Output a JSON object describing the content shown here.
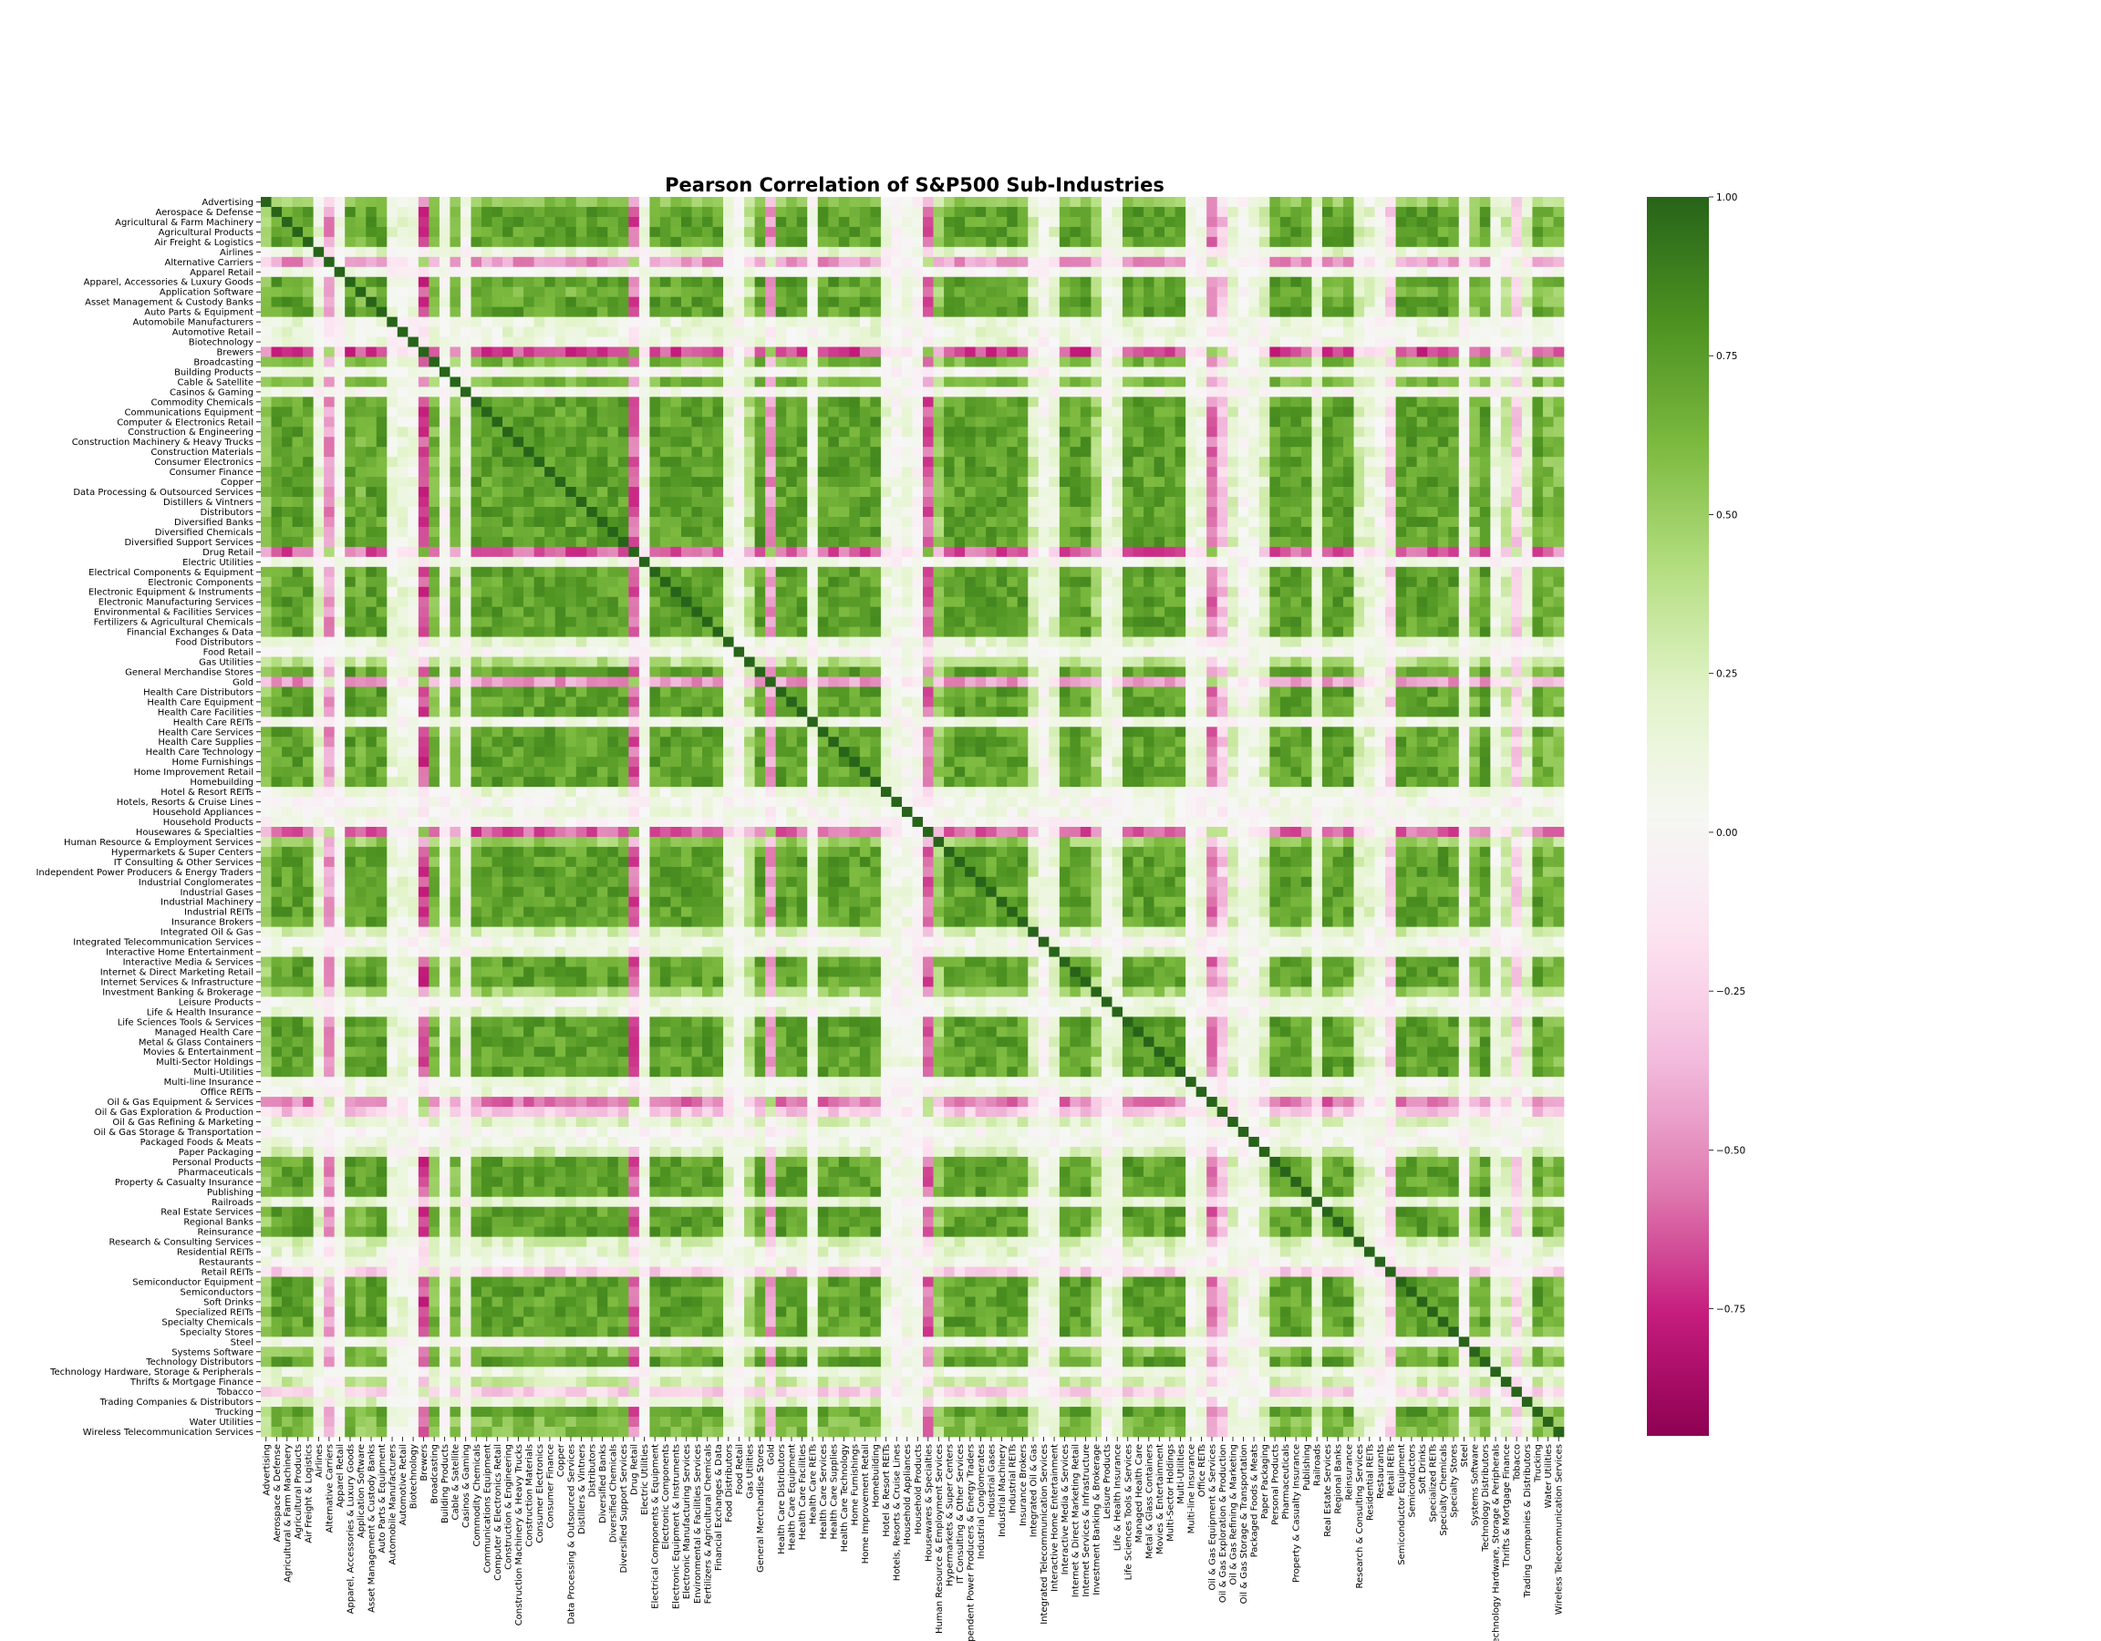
{
  "chart_data": {
    "type": "heatmap",
    "title": "Pearson Correlation of S&P500 Sub-Industries",
    "xlabel": "",
    "ylabel": "",
    "labels": [
      "Advertising",
      "Aerospace & Defense",
      "Agricultural & Farm Machinery",
      "Agricultural Products",
      "Air Freight & Logistics",
      "Airlines",
      "Alternative Carriers",
      "Apparel Retail",
      "Apparel, Accessories & Luxury Goods",
      "Application Software",
      "Asset Management & Custody Banks",
      "Auto Parts & Equipment",
      "Automobile Manufacturers",
      "Automotive Retail",
      "Biotechnology",
      "Brewers",
      "Broadcasting",
      "Building Products",
      "Cable & Satellite",
      "Casinos & Gaming",
      "Commodity Chemicals",
      "Communications Equipment",
      "Computer & Electronics Retail",
      "Construction & Engineering",
      "Construction Machinery & Heavy Trucks",
      "Construction Materials",
      "Consumer Electronics",
      "Consumer Finance",
      "Copper",
      "Data Processing & Outsourced Services",
      "Distillers & Vintners",
      "Distributors",
      "Diversified Banks",
      "Diversified Chemicals",
      "Diversified Support Services",
      "Drug Retail",
      "Electric Utilities",
      "Electrical Components & Equipment",
      "Electronic Components",
      "Electronic Equipment & Instruments",
      "Electronic Manufacturing Services",
      "Environmental & Facilities Services",
      "Fertilizers & Agricultural Chemicals",
      "Financial Exchanges & Data",
      "Food Distributors",
      "Food Retail",
      "Gas Utilities",
      "General Merchandise Stores",
      "Gold",
      "Health Care Distributors",
      "Health Care Equipment",
      "Health Care Facilities",
      "Health Care REITs",
      "Health Care Services",
      "Health Care Supplies",
      "Health Care Technology",
      "Home Furnishings",
      "Home Improvement Retail",
      "Homebuilding",
      "Hotel & Resort REITs",
      "Hotels, Resorts & Cruise Lines",
      "Household Appliances",
      "Household Products",
      "Housewares & Specialties",
      "Human Resource & Employment Services",
      "Hypermarkets & Super Centers",
      "IT Consulting & Other Services",
      "Independent Power Producers & Energy Traders",
      "Industrial Conglomerates",
      "Industrial Gases",
      "Industrial Machinery",
      "Industrial REITs",
      "Insurance Brokers",
      "Integrated Oil & Gas",
      "Integrated Telecommunication Services",
      "Interactive Home Entertainment",
      "Interactive Media & Services",
      "Internet & Direct Marketing Retail",
      "Internet Services & Infrastructure",
      "Investment Banking & Brokerage",
      "Leisure Products",
      "Life & Health Insurance",
      "Life Sciences Tools & Services",
      "Managed Health Care",
      "Metal & Glass Containers",
      "Movies & Entertainment",
      "Multi-Sector Holdings",
      "Multi-Utilities",
      "Multi-line Insurance",
      "Office REITs",
      "Oil & Gas Equipment & Services",
      "Oil & Gas Exploration & Production",
      "Oil & Gas Refining & Marketing",
      "Oil & Gas Storage & Transportation",
      "Packaged Foods & Meats",
      "Paper Packaging",
      "Personal Products",
      "Pharmaceuticals",
      "Property & Casualty Insurance",
      "Publishing",
      "Railroads",
      "Real Estate Services",
      "Regional Banks",
      "Reinsurance",
      "Research & Consulting Services",
      "Residential REITs",
      "Restaurants",
      "Retail REITs",
      "Semiconductor Equipment",
      "Semiconductors",
      "Soft Drinks",
      "Specialized REITs",
      "Specialty Chemicals",
      "Specialty Stores",
      "Steel",
      "Systems Software",
      "Technology Distributors",
      "Technology Hardware, Storage & Peripherals",
      "Thrifts & Mortgage Finance",
      "Tobacco",
      "Trading Companies & Distributors",
      "Trucking",
      "Water Utilities",
      "Wireless Telecommunication Services"
    ],
    "vmin": -0.95,
    "vmax": 1.0,
    "colormap": "PiYG",
    "colorbar_ticks": [
      1.0,
      0.75,
      0.5,
      0.25,
      0.0,
      -0.25,
      -0.5,
      -0.75
    ],
    "colorbar_tick_labels": [
      "1.00",
      "0.75",
      "0.50",
      "0.25",
      "0.00",
      "−0.25",
      "−0.50",
      "−0.75"
    ],
    "profile": {
      "Advertising": 0.62,
      "Airlines": 0.2,
      "Alternative Carriers": -0.55,
      "Apparel Retail": 0.08,
      "Application Software": 0.75,
      "Automobile Manufacturers": 0.15,
      "Automotive Retail": 0.15,
      "Biotechnology": 0.12,
      "Brewers": -0.78,
      "Broadcasting": 0.72,
      "Building Products": 0.05,
      "Cable & Satellite": 0.72,
      "Casinos & Gaming": 0.05,
      "Drug Retail": -0.72,
      "Electric Utilities": 0.1,
      "Food Distributors": 0.2,
      "Food Retail": 0.05,
      "Gas Utilities": 0.45,
      "Gold": -0.55,
      "Health Care REITs": 0.1,
      "Hotel & Resort REITs": 0.15,
      "Hotels, Resorts & Cruise Lines": 0.05,
      "Household Appliances": 0.1,
      "Household Products": 0.02,
      "Housewares & Specialties": -0.72,
      "Human Resource & Employment Services": 0.6,
      "Integrated Oil & Gas": 0.3,
      "Integrated Telecommunication Services": 0.05,
      "Interactive Home Entertainment": 0.2,
      "Investment Banking & Brokerage": 0.55,
      "Leisure Products": 0.1,
      "Life & Health Insurance": 0.2,
      "Multi-line Insurance": 0.1,
      "Office REITs": 0.15,
      "Oil & Gas Equipment & Services": -0.65,
      "Oil & Gas Exploration & Production": -0.35,
      "Oil & Gas Refining & Marketing": 0.25,
      "Oil & Gas Storage & Transportation": 0.05,
      "Packaged Foods & Meats": 0.1,
      "Paper Packaging": 0.3,
      "Railroads": 0.2,
      "Research & Consulting Services": 0.3,
      "Residential REITs": 0.2,
      "Restaurants": 0.1,
      "Retail REITs": -0.3,
      "Steel": 0.05,
      "Systems Software": 0.7,
      "Technology Hardware, Storage & Peripherals": 0.15,
      "Thrifts & Mortgage Finance": 0.35,
      "Tobacco": -0.3,
      "Trading Companies & Distributors": 0.25,
      "Water Utilities": 0.7,
      "Wireless Telecommunication Services": 0.7
    },
    "default_profile": 0.85,
    "diagonal": 1.0
  }
}
